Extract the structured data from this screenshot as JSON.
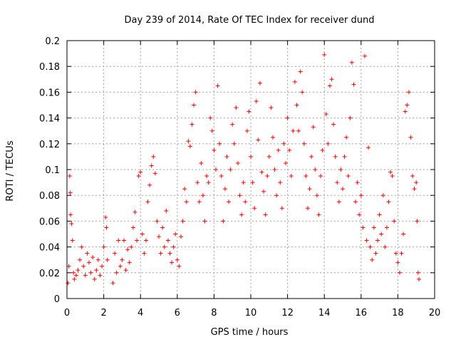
{
  "chart_data": {
    "type": "scatter",
    "title": "Day 239 of 2014, Rate Of TEC Index for receiver dund",
    "xlabel": "GPS time / hours",
    "ylabel": "ROTI / TECUs",
    "xlim": [
      0,
      20
    ],
    "ylim": [
      0,
      0.2
    ],
    "xticks": [
      0,
      2,
      4,
      6,
      8,
      10,
      12,
      14,
      16,
      18,
      20
    ],
    "yticks": [
      0,
      0.02,
      0.04,
      0.06,
      0.08,
      0.1,
      0.12,
      0.14,
      0.16,
      0.18,
      0.2
    ],
    "xtick_labels": [
      "0",
      "2",
      "4",
      "6",
      "8",
      "10",
      "12",
      "14",
      "16",
      "18",
      "20"
    ],
    "ytick_labels": [
      "0",
      "0.02",
      "0.04",
      "0.06",
      "0.08",
      "0.1",
      "0.12",
      "0.14",
      "0.16",
      "0.18",
      "0.2"
    ],
    "grid": true,
    "marker": "+",
    "series": [
      {
        "name": "ROTI",
        "color": "#ff0000",
        "points": [
          [
            0.05,
            0.012
          ],
          [
            0.1,
            0.025
          ],
          [
            0.15,
            0.095
          ],
          [
            0.18,
            0.082
          ],
          [
            0.2,
            0.065
          ],
          [
            0.25,
            0.058
          ],
          [
            0.3,
            0.045
          ],
          [
            0.35,
            0.02
          ],
          [
            0.4,
            0.015
          ],
          [
            0.5,
            0.018
          ],
          [
            0.6,
            0.022
          ],
          [
            0.7,
            0.03
          ],
          [
            0.8,
            0.04
          ],
          [
            0.9,
            0.025
          ],
          [
            1.0,
            0.018
          ],
          [
            1.1,
            0.035
          ],
          [
            1.2,
            0.028
          ],
          [
            1.3,
            0.02
          ],
          [
            1.4,
            0.032
          ],
          [
            1.5,
            0.015
          ],
          [
            1.6,
            0.022
          ],
          [
            1.7,
            0.03
          ],
          [
            1.8,
            0.018
          ],
          [
            1.9,
            0.025
          ],
          [
            2.0,
            0.04
          ],
          [
            2.1,
            0.063
          ],
          [
            2.15,
            0.055
          ],
          [
            2.2,
            0.03
          ],
          [
            2.5,
            0.012
          ],
          [
            2.6,
            0.035
          ],
          [
            2.7,
            0.02
          ],
          [
            2.8,
            0.045
          ],
          [
            2.9,
            0.025
          ],
          [
            3.0,
            0.03
          ],
          [
            3.1,
            0.045
          ],
          [
            3.2,
            0.022
          ],
          [
            3.3,
            0.038
          ],
          [
            3.4,
            0.028
          ],
          [
            3.5,
            0.04
          ],
          [
            3.6,
            0.055
          ],
          [
            3.7,
            0.067
          ],
          [
            3.8,
            0.045
          ],
          [
            3.9,
            0.095
          ],
          [
            4.0,
            0.098
          ],
          [
            4.1,
            0.05
          ],
          [
            4.2,
            0.035
          ],
          [
            4.3,
            0.045
          ],
          [
            4.4,
            0.075
          ],
          [
            4.5,
            0.088
          ],
          [
            4.6,
            0.103
          ],
          [
            4.7,
            0.11
          ],
          [
            4.8,
            0.097
          ],
          [
            4.9,
            0.06
          ],
          [
            5.0,
            0.048
          ],
          [
            5.1,
            0.035
          ],
          [
            5.2,
            0.055
          ],
          [
            5.3,
            0.04
          ],
          [
            5.4,
            0.068
          ],
          [
            5.5,
            0.045
          ],
          [
            5.6,
            0.035
          ],
          [
            5.7,
            0.028
          ],
          [
            5.8,
            0.04
          ],
          [
            5.9,
            0.05
          ],
          [
            6.0,
            0.03
          ],
          [
            6.1,
            0.025
          ],
          [
            6.2,
            0.048
          ],
          [
            6.3,
            0.06
          ],
          [
            6.4,
            0.085
          ],
          [
            6.5,
            0.075
          ],
          [
            6.6,
            0.122
          ],
          [
            6.7,
            0.118
          ],
          [
            6.8,
            0.135
          ],
          [
            6.9,
            0.15
          ],
          [
            7.0,
            0.16
          ],
          [
            7.1,
            0.09
          ],
          [
            7.2,
            0.075
          ],
          [
            7.3,
            0.105
          ],
          [
            7.4,
            0.08
          ],
          [
            7.5,
            0.06
          ],
          [
            7.6,
            0.095
          ],
          [
            7.7,
            0.09
          ],
          [
            7.8,
            0.14
          ],
          [
            7.9,
            0.13
          ],
          [
            8.0,
            0.115
          ],
          [
            8.1,
            0.1
          ],
          [
            8.2,
            0.165
          ],
          [
            8.3,
            0.12
          ],
          [
            8.4,
            0.095
          ],
          [
            8.5,
            0.06
          ],
          [
            8.6,
            0.085
          ],
          [
            8.7,
            0.11
          ],
          [
            8.8,
            0.075
          ],
          [
            8.9,
            0.1
          ],
          [
            9.0,
            0.135
          ],
          [
            9.1,
            0.12
          ],
          [
            9.2,
            0.148
          ],
          [
            9.3,
            0.105
          ],
          [
            9.4,
            0.08
          ],
          [
            9.5,
            0.065
          ],
          [
            9.6,
            0.09
          ],
          [
            9.7,
            0.075
          ],
          [
            9.8,
            0.13
          ],
          [
            9.9,
            0.145
          ],
          [
            10.0,
            0.11
          ],
          [
            10.1,
            0.09
          ],
          [
            10.2,
            0.07
          ],
          [
            10.3,
            0.153
          ],
          [
            10.4,
            0.123
          ],
          [
            10.5,
            0.167
          ],
          [
            10.6,
            0.098
          ],
          [
            10.7,
            0.083
          ],
          [
            10.8,
            0.065
          ],
          [
            10.9,
            0.095
          ],
          [
            11.0,
            0.11
          ],
          [
            11.1,
            0.148
          ],
          [
            11.2,
            0.125
          ],
          [
            11.3,
            0.1
          ],
          [
            11.4,
            0.08
          ],
          [
            11.5,
            0.115
          ],
          [
            11.6,
            0.09
          ],
          [
            11.7,
            0.07
          ],
          [
            11.8,
            0.12
          ],
          [
            11.9,
            0.105
          ],
          [
            12.0,
            0.14
          ],
          [
            12.1,
            0.115
          ],
          [
            12.2,
            0.095
          ],
          [
            12.3,
            0.13
          ],
          [
            12.4,
            0.168
          ],
          [
            12.5,
            0.15
          ],
          [
            12.6,
            0.13
          ],
          [
            12.7,
            0.176
          ],
          [
            12.8,
            0.16
          ],
          [
            12.9,
            0.12
          ],
          [
            13.0,
            0.095
          ],
          [
            13.1,
            0.07
          ],
          [
            13.2,
            0.085
          ],
          [
            13.3,
            0.11
          ],
          [
            13.4,
            0.133
          ],
          [
            13.5,
            0.1
          ],
          [
            13.6,
            0.08
          ],
          [
            13.7,
            0.065
          ],
          [
            13.8,
            0.095
          ],
          [
            13.9,
            0.115
          ],
          [
            14.0,
            0.189
          ],
          [
            14.1,
            0.143
          ],
          [
            14.2,
            0.12
          ],
          [
            14.3,
            0.165
          ],
          [
            14.4,
            0.17
          ],
          [
            14.5,
            0.135
          ],
          [
            14.6,
            0.11
          ],
          [
            14.7,
            0.09
          ],
          [
            14.8,
            0.075
          ],
          [
            14.9,
            0.1
          ],
          [
            15.0,
            0.085
          ],
          [
            15.1,
            0.11
          ],
          [
            15.2,
            0.125
          ],
          [
            15.3,
            0.095
          ],
          [
            15.4,
            0.14
          ],
          [
            15.5,
            0.183
          ],
          [
            15.6,
            0.166
          ],
          [
            15.7,
            0.075
          ],
          [
            15.8,
            0.09
          ],
          [
            15.9,
            0.065
          ],
          [
            16.0,
            0.08
          ],
          [
            16.1,
            0.055
          ],
          [
            16.2,
            0.188
          ],
          [
            16.3,
            0.045
          ],
          [
            16.4,
            0.117
          ],
          [
            16.5,
            0.04
          ],
          [
            16.6,
            0.03
          ],
          [
            16.7,
            0.055
          ],
          [
            16.8,
            0.035
          ],
          [
            16.9,
            0.045
          ],
          [
            17.0,
            0.065
          ],
          [
            17.1,
            0.05
          ],
          [
            17.2,
            0.08
          ],
          [
            17.3,
            0.04
          ],
          [
            17.4,
            0.055
          ],
          [
            17.5,
            0.075
          ],
          [
            17.6,
            0.098
          ],
          [
            17.7,
            0.095
          ],
          [
            17.8,
            0.06
          ],
          [
            17.9,
            0.035
          ],
          [
            18.0,
            0.028
          ],
          [
            18.1,
            0.02
          ],
          [
            18.2,
            0.035
          ],
          [
            18.3,
            0.05
          ],
          [
            18.4,
            0.145
          ],
          [
            18.5,
            0.15
          ],
          [
            18.6,
            0.16
          ],
          [
            18.7,
            0.125
          ],
          [
            18.8,
            0.095
          ],
          [
            18.9,
            0.085
          ],
          [
            19.0,
            0.09
          ],
          [
            19.05,
            0.06
          ],
          [
            19.1,
            0.02
          ],
          [
            19.15,
            0.015
          ]
        ]
      }
    ]
  }
}
